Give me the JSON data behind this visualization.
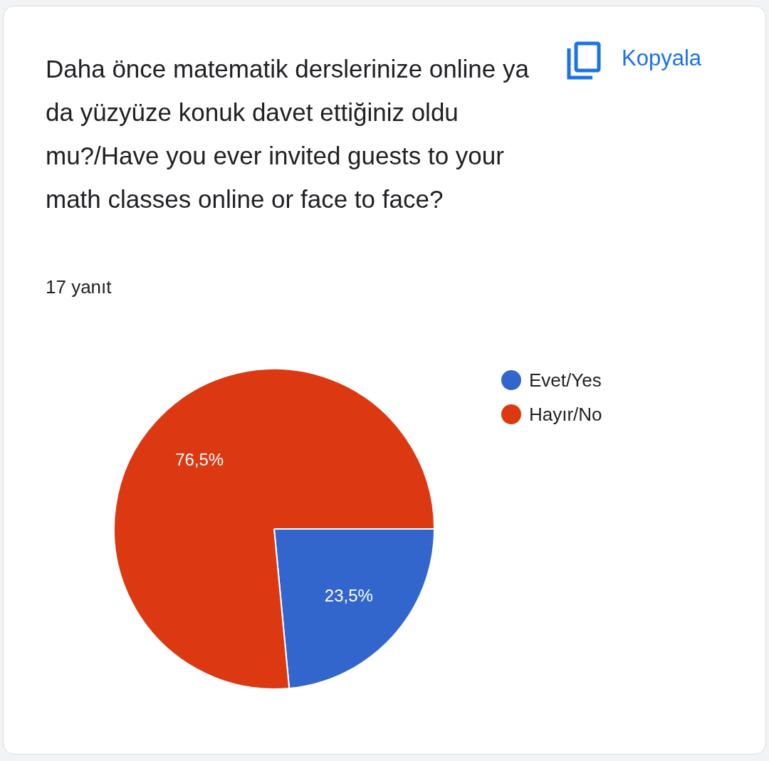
{
  "chart_data": {
    "type": "pie",
    "title": "Daha önce matematik derslerinize online ya da yüzyüze konuk davet ettiğiniz oldu mu?/Have you ever invited guests to your math classes online or face to face?",
    "subtitle": "17 yanıt",
    "annotations": [
      "Kopyala"
    ],
    "categories": [
      "Evet/Yes",
      "Hayır/No"
    ],
    "values": [
      23.5,
      76.5
    ],
    "value_labels": [
      "23,5%",
      "76,5%"
    ],
    "colors": [
      "#3366cc",
      "#dc3912"
    ],
    "legend": "right"
  }
}
